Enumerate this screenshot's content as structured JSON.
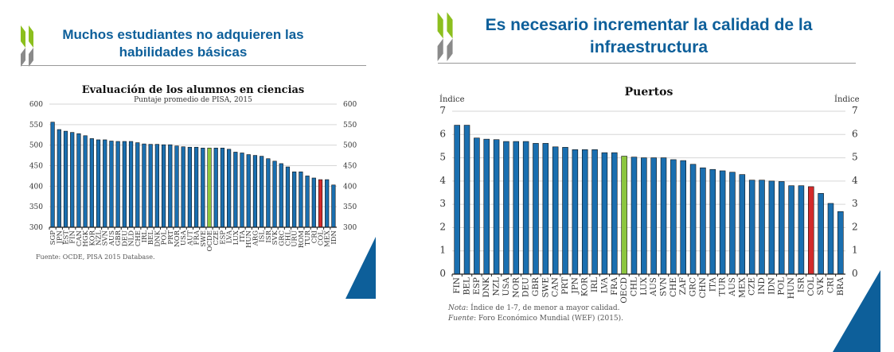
{
  "left_slide": {
    "title_line1": "Muchos estudiantes no adquieren las",
    "title_line2": "habilidades básicas",
    "source": "Fuente: OCDE, PISA 2015 Database."
  },
  "right_slide": {
    "title_line1": "Es necesario incrementar la calidad de la",
    "title_line2": "infraestructura",
    "note_label": "Nota",
    "note_text": ": Índice de 1-7, de menor a mayor calidad.",
    "source_label": "Fuente",
    "source_text": ": Foro Económico Mundial (WEF) (2015)."
  },
  "colors": {
    "brand_blue": "#0d5f9a",
    "bar": "#1a6fb0",
    "highlight_oecd": "#8cc63f",
    "highlight_col": "#d42a2a",
    "logo_green": "#8cbf1e",
    "logo_grey": "#8a8a8a"
  },
  "logo_icon": "oecd-chevrons-icon",
  "chart_data": [
    {
      "type": "bar",
      "title": "Evaluación de los alumnos en ciencias",
      "subtitle": "Puntaje promedio de PISA, 2015",
      "ylim": [
        300,
        600
      ],
      "yticks": [
        300,
        350,
        400,
        450,
        500,
        550,
        600
      ],
      "dual_axis": true,
      "grid": true,
      "categories": [
        "SGP",
        "JPN",
        "EST",
        "FIN",
        "CAN",
        "HGK",
        "KOR",
        "NZL",
        "SVN",
        "AUS",
        "GBR",
        "DEU",
        "NLD",
        "CHE",
        "IRL",
        "BEL",
        "DNK",
        "POL",
        "PRT",
        "NOR",
        "USA",
        "AUT",
        "FRA",
        "SWE",
        "OCDE",
        "CZE",
        "ESP",
        "LVA",
        "LUX",
        "ITA",
        "HUN",
        "ARG",
        "ISL",
        "ISR",
        "SVK",
        "GRC",
        "CHL",
        "URU",
        "ROM",
        "TUR",
        "CRI",
        "COL",
        "MEX",
        "IDN"
      ],
      "values": [
        556,
        538,
        534,
        531,
        528,
        523,
        516,
        513,
        513,
        510,
        509,
        509,
        509,
        506,
        503,
        502,
        502,
        501,
        501,
        498,
        496,
        495,
        495,
        493,
        493,
        493,
        493,
        490,
        483,
        481,
        477,
        475,
        473,
        467,
        461,
        455,
        447,
        435,
        435,
        425,
        420,
        416,
        416,
        403
      ],
      "highlights": {
        "OCDE": "green",
        "COL": "red"
      }
    },
    {
      "type": "bar",
      "title": "Puertos",
      "ylabel": "Índice",
      "ylabel_right": "Índice",
      "ylim": [
        0,
        7
      ],
      "yticks": [
        0,
        1,
        2,
        3,
        4,
        5,
        6,
        7
      ],
      "dual_axis": true,
      "grid": true,
      "categories": [
        "FIN",
        "BEL",
        "ESP",
        "DNK",
        "NZL",
        "USA",
        "NOR",
        "DEU",
        "GBR",
        "SWE",
        "CAN",
        "PRT",
        "JPN",
        "KOR",
        "IRL",
        "LVA",
        "FRA",
        "OECD",
        "CHL",
        "LUX",
        "AUS",
        "SVN",
        "CHE",
        "ZAF",
        "GRC",
        "CHN",
        "ITA",
        "TUR",
        "AUS",
        "MEX",
        "CZE",
        "IND",
        "IDN",
        "POL",
        "HUN",
        "ISR",
        "COL",
        "SVK",
        "CRI",
        "BRA"
      ],
      "values": [
        6.4,
        6.4,
        5.85,
        5.8,
        5.78,
        5.7,
        5.7,
        5.7,
        5.62,
        5.62,
        5.47,
        5.45,
        5.35,
        5.35,
        5.35,
        5.22,
        5.22,
        5.07,
        5.03,
        5.0,
        5.0,
        5.0,
        4.92,
        4.88,
        4.72,
        4.57,
        4.5,
        4.44,
        4.38,
        4.28,
        4.04,
        4.04,
        4.0,
        3.98,
        3.8,
        3.8,
        3.76,
        3.47,
        3.04,
        2.69
      ],
      "highlights": {
        "OECD": "green",
        "COL": "red"
      }
    }
  ]
}
